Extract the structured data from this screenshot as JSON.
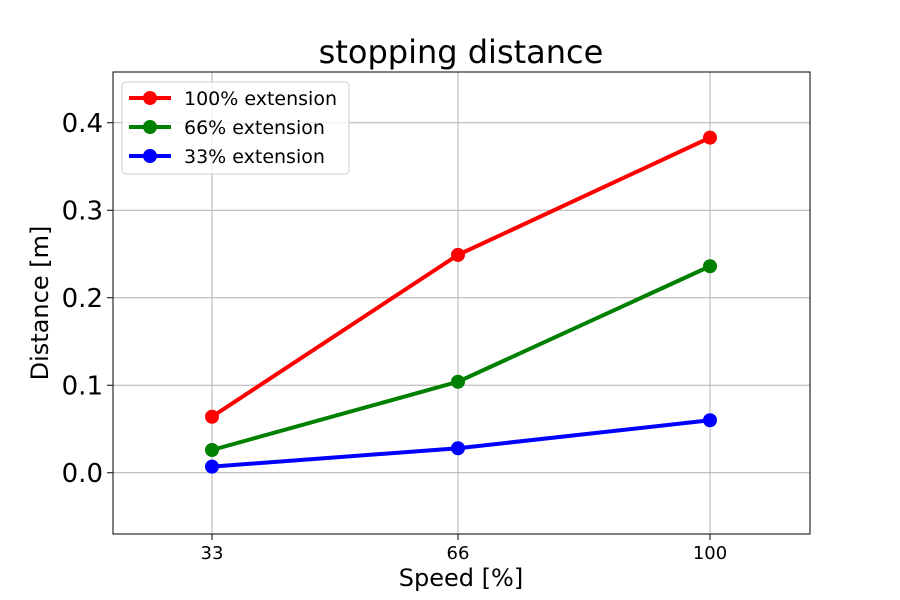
{
  "chart_data": {
    "type": "line",
    "title": "stopping distance",
    "xlabel": "Speed [%]",
    "ylabel": "Distance [m]",
    "x": [
      33,
      66,
      100
    ],
    "xticks": [
      "33",
      "66",
      "100"
    ],
    "yticks": [
      "0.0",
      "0.1",
      "0.2",
      "0.3",
      "0.4"
    ],
    "ylim": [
      -0.07,
      0.458
    ],
    "grid": true,
    "legend_position": "top-left",
    "series": [
      {
        "name": "100% extension",
        "color": "#ff0000",
        "values": [
          0.064,
          0.249,
          0.383
        ]
      },
      {
        "name": "66% extension",
        "color": "#008000",
        "values": [
          0.026,
          0.104,
          0.236
        ]
      },
      {
        "name": "33% extension",
        "color": "#0000ff",
        "values": [
          0.007,
          0.028,
          0.06
        ]
      }
    ]
  }
}
